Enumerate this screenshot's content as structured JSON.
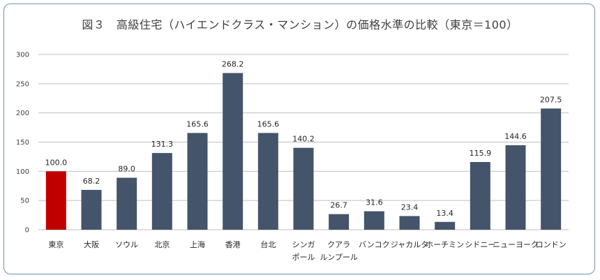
{
  "chart_data": {
    "type": "bar",
    "title": "図３　高級住宅（ハイエンドクラス・マンション）の価格水準の比較（東京＝100）",
    "categories": [
      [
        "東京"
      ],
      [
        "大阪"
      ],
      [
        "ソウル"
      ],
      [
        "北京"
      ],
      [
        "上海"
      ],
      [
        "香港"
      ],
      [
        "台北"
      ],
      [
        "シンガ",
        "ポール"
      ],
      [
        "クアラ",
        "ルンプール"
      ],
      [
        "バンコク"
      ],
      [
        "ジャカルタ"
      ],
      [
        "ホーチミン"
      ],
      [
        "シドニー"
      ],
      [
        "ニューヨーク"
      ],
      [
        "ロンドン"
      ]
    ],
    "values": [
      100.0,
      68.2,
      89.0,
      131.3,
      165.6,
      268.2,
      165.6,
      140.2,
      26.7,
      31.6,
      23.4,
      13.4,
      115.9,
      144.6,
      207.5
    ],
    "value_labels": [
      "100.0",
      "68.2",
      "89.0",
      "131.3",
      "165.6",
      "268.2",
      "165.6",
      "140.2",
      "26.7",
      "31.6",
      "23.4",
      "13.4",
      "115.9",
      "144.6",
      "207.5"
    ],
    "yticks": [
      "0",
      "50",
      "100",
      "150",
      "200",
      "250",
      "300"
    ],
    "ylim": [
      0,
      300
    ],
    "grid": true,
    "legend": "none",
    "colors": {
      "bar": "#44546a",
      "highlight": "#c00000",
      "grid": "#bfbfbf"
    },
    "highlight_index": 0
  }
}
